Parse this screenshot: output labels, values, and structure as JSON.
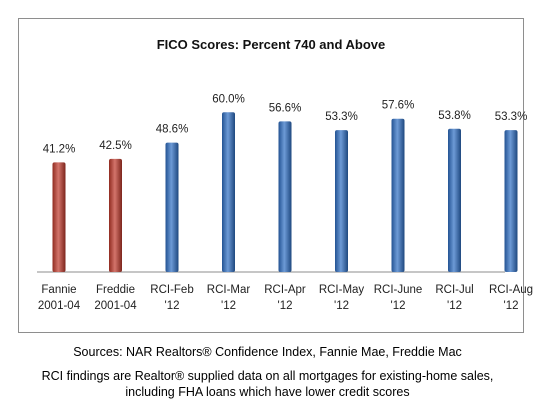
{
  "chart_data": {
    "type": "bar",
    "title": "FICO Scores:  Percent 740 and Above",
    "categories": [
      [
        "Fannie",
        "2001-04"
      ],
      [
        "Freddie",
        "2001-04"
      ],
      [
        "RCI-Feb",
        "'12"
      ],
      [
        "RCI-Mar",
        "'12"
      ],
      [
        "RCI-Apr",
        "'12"
      ],
      [
        "RCI-May",
        "'12"
      ],
      [
        "RCI-June",
        "'12"
      ],
      [
        "RCI-Jul",
        "'12"
      ],
      [
        "RCI-Aug",
        "'12"
      ]
    ],
    "values": [
      41.2,
      42.5,
      48.6,
      60.0,
      56.6,
      53.3,
      57.6,
      53.8,
      53.3
    ],
    "value_labels": [
      "41.2%",
      "42.5%",
      "48.6%",
      "60.0%",
      "56.6%",
      "53.3%",
      "57.6%",
      "53.8%",
      "53.3%"
    ],
    "bar_colors": [
      "#c0392b",
      "#c0392b",
      "#2e6fc4",
      "#2e6fc4",
      "#2e6fc4",
      "#2e6fc4",
      "#2e6fc4",
      "#2e6fc4",
      "#2e6fc4"
    ],
    "ylim": [
      0,
      65
    ],
    "grid": false,
    "legend": "none"
  },
  "notes": {
    "sources": "Sources:  NAR Realtors® Confidence Index, Fannie Mae, Freddie Mac",
    "rci_line1": "RCI findings are Realtor® supplied data on all mortgages for existing-home sales,",
    "rci_line2": "including FHA loans which have lower credit scores"
  }
}
